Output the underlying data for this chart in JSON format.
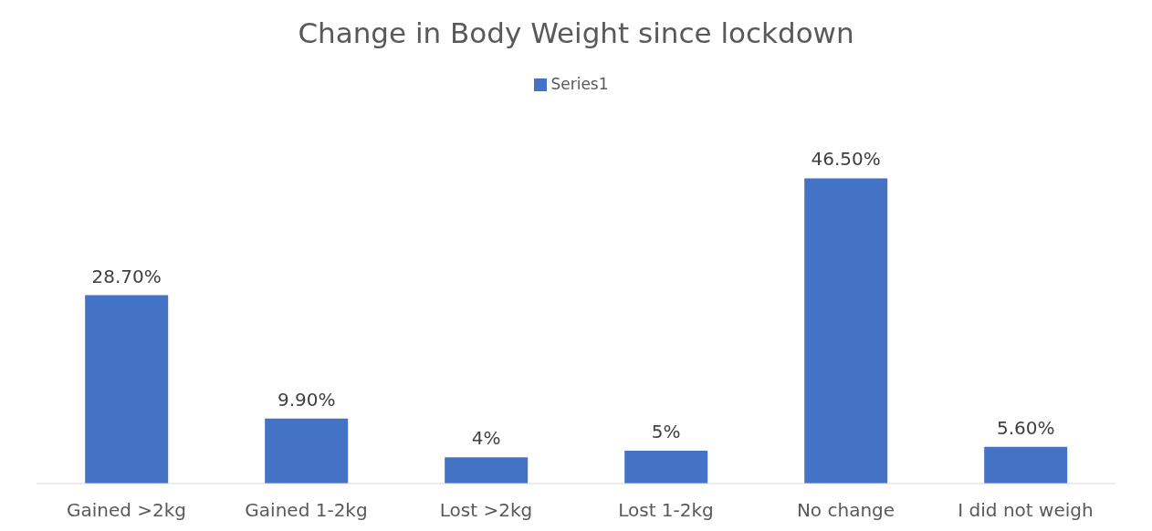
{
  "chart_data": {
    "type": "bar",
    "title": "Change in Body Weight since lockdown",
    "categories": [
      "Gained >2kg",
      "Gained 1-2kg",
      "Lost >2kg",
      "Lost 1-2kg",
      "No change",
      "I did not weigh"
    ],
    "series": [
      {
        "name": "Series1",
        "color": "#4472c4",
        "values": [
          28.7,
          9.9,
          4,
          5,
          46.5,
          5.6
        ],
        "value_labels": [
          "28.70%",
          "9.90%",
          "4%",
          "5%",
          "46.50%",
          "5.60%"
        ]
      }
    ],
    "legend": "top"
  }
}
